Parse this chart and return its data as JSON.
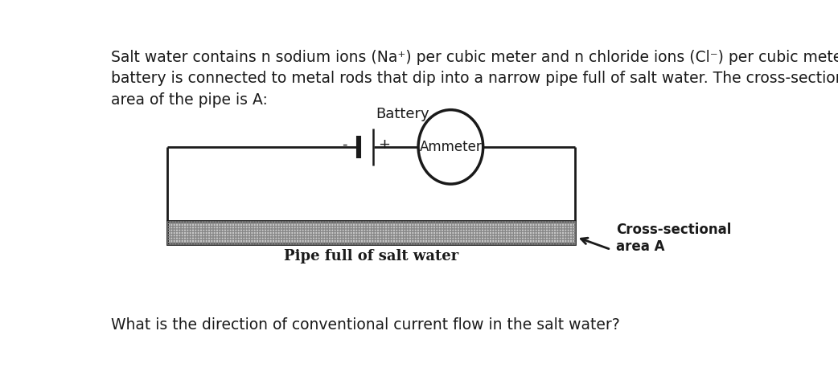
{
  "title_text": "Salt water contains n sodium ions (Na⁺) per cubic meter and n chloride ions (Cl⁻) per cubic meter. A\nbattery is connected to metal rods that dip into a narrow pipe full of salt water. The cross-sectional\narea of the pipe is A:",
  "question_text": "What is the direction of conventional current flow in the salt water?",
  "battery_label": "Battery",
  "battery_minus": "-",
  "battery_plus": "+",
  "ammeter_label": "Ammeter",
  "pipe_label": "Pipe full of salt water",
  "cross_section_label": "Cross-sectional\narea A",
  "bg_color": "#ffffff",
  "line_color": "#1a1a1a",
  "pipe_fill": "#cccccc",
  "font_size_title": 13.5,
  "font_size_labels": 13,
  "font_size_battery": 13,
  "font_size_pipe": 13
}
